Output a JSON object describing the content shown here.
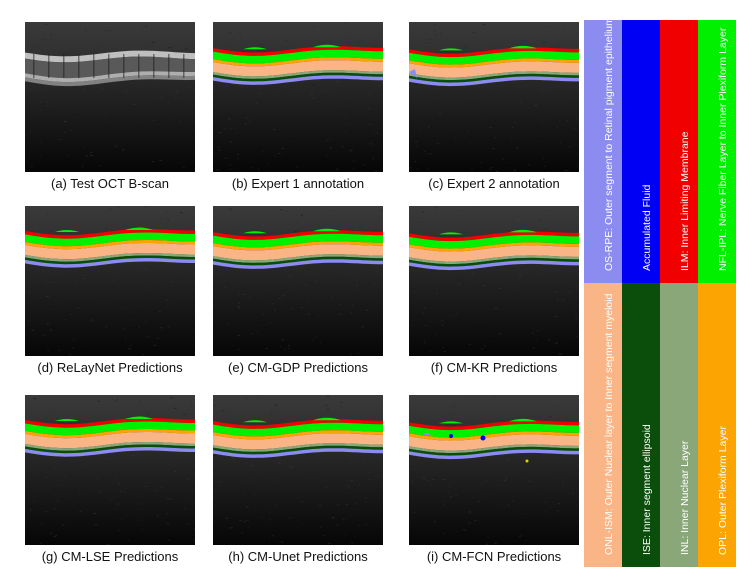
{
  "panels": [
    {
      "id": "a",
      "caption": "(a) Test OCT B-scan",
      "kind": "raw"
    },
    {
      "id": "b",
      "caption": "(b) Expert 1 annotation",
      "kind": "annot"
    },
    {
      "id": "c",
      "caption": "(c) Expert 2 annotation",
      "kind": "annot"
    },
    {
      "id": "d",
      "caption": "(d) ReLayNet Predictions",
      "kind": "annot"
    },
    {
      "id": "e",
      "caption": "(e) CM-GDP Predictions",
      "kind": "annot"
    },
    {
      "id": "f",
      "caption": "(f) CM-KR Predictions",
      "kind": "annot"
    },
    {
      "id": "g",
      "caption": "(g) CM-LSE Predictions",
      "kind": "annot"
    },
    {
      "id": "h",
      "caption": "(h) CM-Unet Predictions",
      "kind": "annot"
    },
    {
      "id": "i",
      "caption": "(i) CM-FCN Predictions",
      "kind": "annot"
    }
  ],
  "legend": [
    {
      "text": "OS-RPE: Outer segment to Retinal pigment epithelium",
      "color": "#8b8bf0",
      "text_color": "#ffffff"
    },
    {
      "text": "Accumulated Fluid",
      "color": "#0000f5",
      "text_color": "#ffffff"
    },
    {
      "text": "ILM: Inner Limiting Membrane",
      "color": "#f00000",
      "text_color": "#ffffff"
    },
    {
      "text": "NFL-IPL: Nerve Fiber Layer to Inner Plexiform Layer",
      "color": "#00f000",
      "text_color": "#ffffff"
    },
    {
      "text": "ONL-ISM: Outer Nuclear layer to Inner segment myeloid",
      "color": "#f9b585",
      "text_color": "#ffffff"
    },
    {
      "text": "ISE: Inner segment ellipsoid",
      "color": "#0b4e0b",
      "text_color": "#ffffff"
    },
    {
      "text": "INL: Inner Nuclear Layer",
      "color": "#8aa77a",
      "text_color": "#ffffff"
    },
    {
      "text": "OPL: Outer Plexiform Layer",
      "color": "#fba402",
      "text_color": "#ffffff"
    }
  ]
}
